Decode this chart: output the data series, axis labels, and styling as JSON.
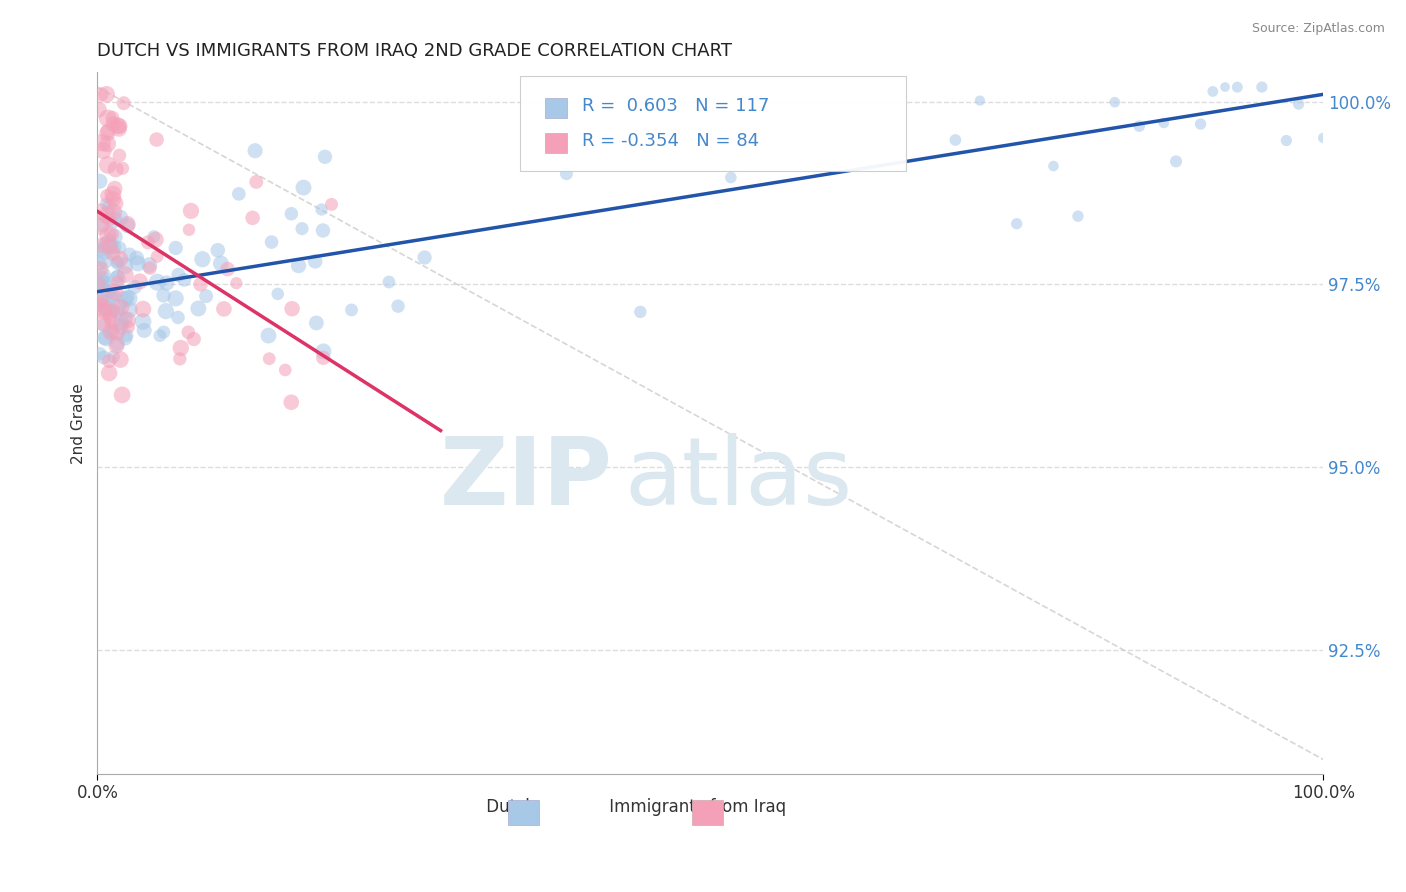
{
  "title": "DUTCH VS IMMIGRANTS FROM IRAQ 2ND GRADE CORRELATION CHART",
  "source_text": "Source: ZipAtlas.com",
  "ylabel": "2nd Grade",
  "xlim": [
    0.0,
    1.0
  ],
  "ylim": [
    0.908,
    1.004
  ],
  "yticks": [
    0.925,
    0.95,
    0.975,
    1.0
  ],
  "ytick_labels": [
    "92.5%",
    "95.0%",
    "97.5%",
    "100.0%"
  ],
  "xtick_labels": [
    "0.0%",
    "100.0%"
  ],
  "dutch_color": "#a8c8e8",
  "dutch_edge_color": "#7aaed0",
  "iraq_color": "#f4a0b8",
  "iraq_edge_color": "#e07090",
  "dutch_line_color": "#2255aa",
  "iraq_line_color": "#dd3366",
  "diag_line_color": "#cccccc",
  "tick_color": "#4488cc",
  "R_dutch": 0.603,
  "N_dutch": 117,
  "R_iraq": -0.354,
  "N_iraq": 84,
  "watermark_zip": "ZIP",
  "watermark_atlas": "atlas",
  "background_color": "#ffffff",
  "title_fontsize": 13,
  "legend_fontsize": 13,
  "dutch_line_start_y": 0.974,
  "dutch_line_end_y": 1.001,
  "iraq_line_start_x": 0.0,
  "iraq_line_start_y": 0.985,
  "iraq_line_end_x": 0.28,
  "iraq_line_end_y": 0.955
}
